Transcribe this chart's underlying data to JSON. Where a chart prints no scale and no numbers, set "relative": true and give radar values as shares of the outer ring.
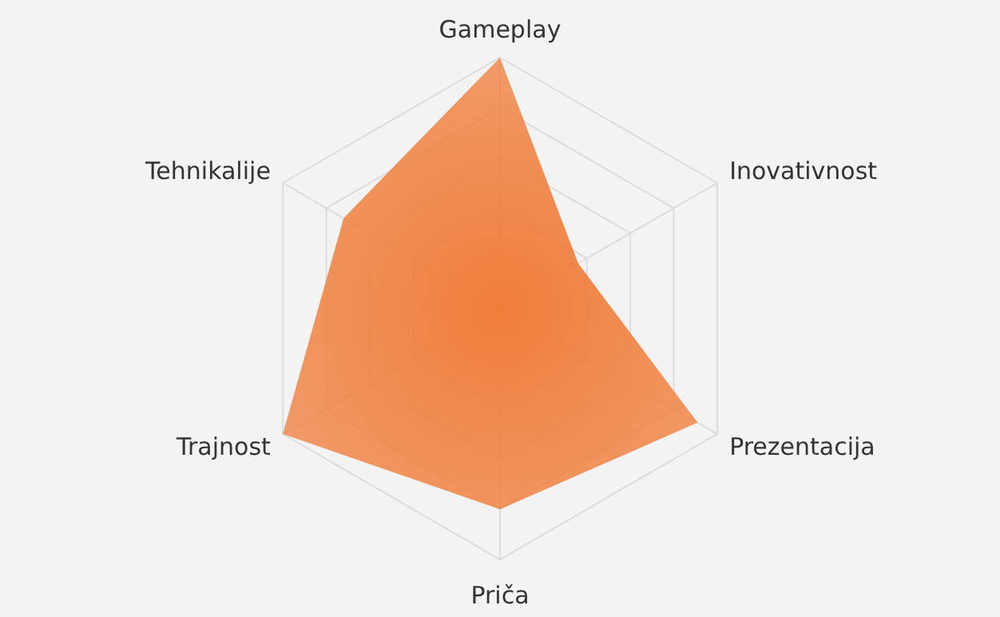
{
  "chart_data": {
    "type": "radar",
    "relative": true,
    "grid": true,
    "categories": [
      "Gameplay",
      "Inovativnost",
      "Prezentacija",
      "Priča",
      "Trajnost",
      "Tehnikalije"
    ],
    "series": [
      {
        "color": "#f07d3a",
        "values": [
          1.0,
          0.36,
          0.91,
          0.8,
          1.0,
          0.72
        ]
      }
    ]
  }
}
